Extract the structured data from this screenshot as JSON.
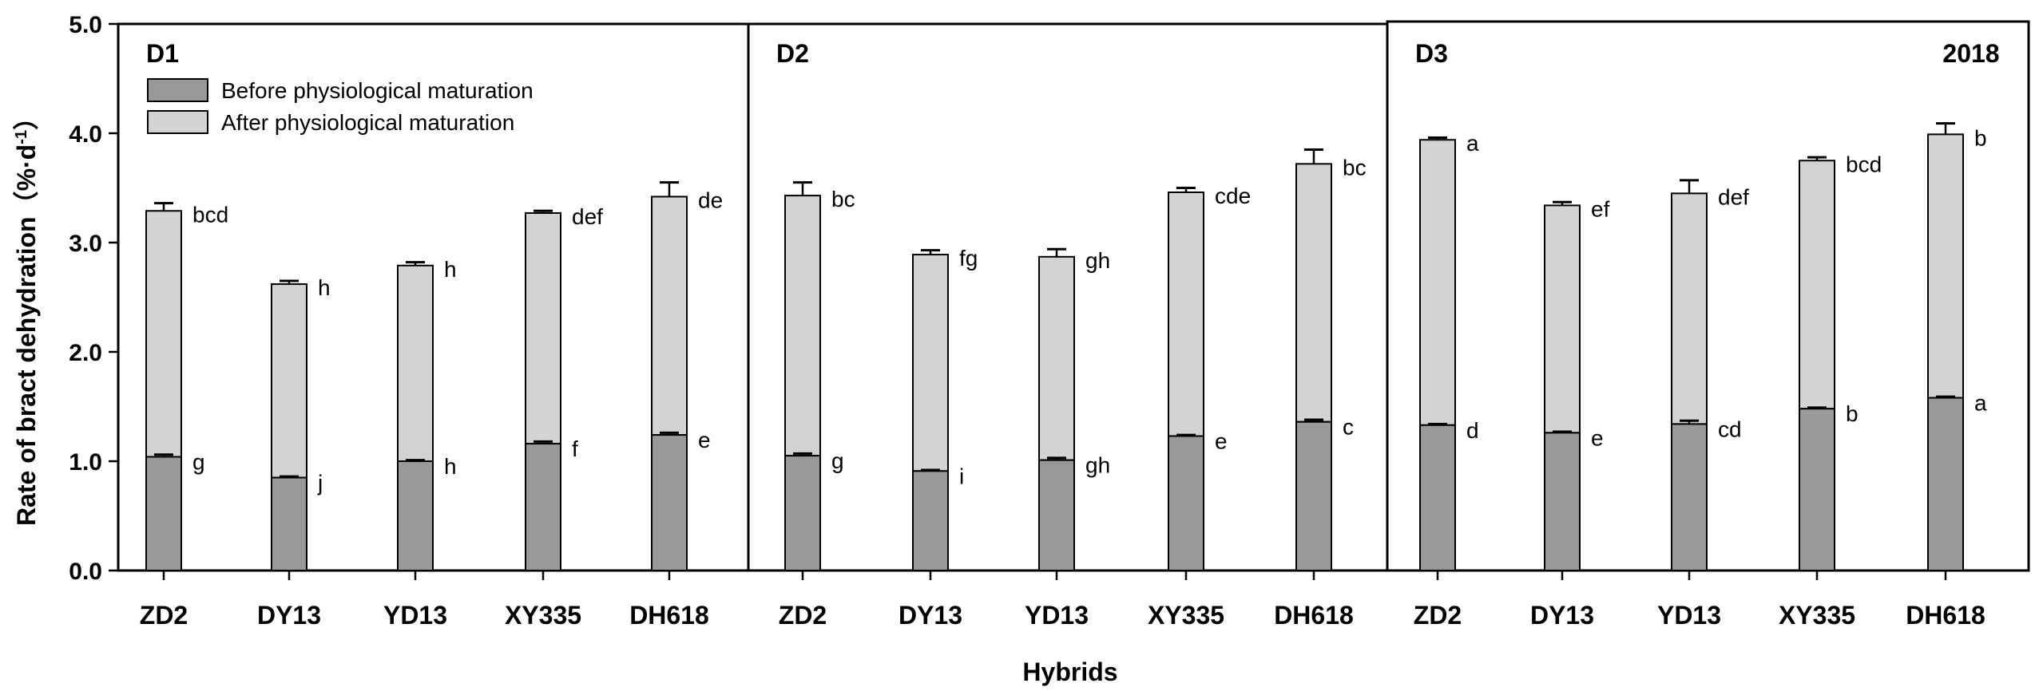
{
  "chart_data": {
    "type": "bar",
    "stacked": true,
    "year_label": "2018",
    "ylabel": "Rate of bract dehydration（%·d",
    "ylabel_sup": "-1",
    "ylabel_close": "）",
    "xlabel": "Hybrids",
    "ylim": [
      0,
      5
    ],
    "yticks": [
      "0.0",
      "1.0",
      "2.0",
      "3.0",
      "4.0",
      "5.0"
    ],
    "legend": {
      "position": "top-left",
      "entries": [
        {
          "name": "Before physiological maturation",
          "color": "#999999"
        },
        {
          "name": "After physiological maturation",
          "color": "#d3d3d3"
        }
      ]
    },
    "colors": {
      "before": "#999999",
      "after": "#d3d3d3"
    },
    "panels": [
      {
        "name": "D1",
        "categories": [
          "ZD2",
          "DY13",
          "YD13",
          "XY335",
          "DH618"
        ],
        "before": [
          1.04,
          0.85,
          1.0,
          1.16,
          1.24
        ],
        "before_err": [
          0.02,
          0.01,
          0.01,
          0.02,
          0.02
        ],
        "before_sig": [
          "g",
          "j",
          "h",
          "f",
          "e"
        ],
        "total": [
          3.29,
          2.62,
          2.79,
          3.27,
          3.42
        ],
        "total_err": [
          0.07,
          0.03,
          0.03,
          0.02,
          0.13
        ],
        "total_sig": [
          "bcd",
          "h",
          "h",
          "def",
          "de"
        ]
      },
      {
        "name": "D2",
        "categories": [
          "ZD2",
          "DY13",
          "YD13",
          "XY335",
          "DH618"
        ],
        "before": [
          1.05,
          0.91,
          1.01,
          1.23,
          1.36
        ],
        "before_err": [
          0.02,
          0.01,
          0.02,
          0.01,
          0.02
        ],
        "before_sig": [
          "g",
          "i",
          "gh",
          "e",
          "c"
        ],
        "total": [
          3.43,
          2.89,
          2.87,
          3.46,
          3.72
        ],
        "total_err": [
          0.12,
          0.04,
          0.07,
          0.04,
          0.13
        ],
        "total_sig": [
          "bc",
          "fg",
          "gh",
          "cde",
          "bc"
        ]
      },
      {
        "name": "D3",
        "categories": [
          "ZD2",
          "DY13",
          "YD13",
          "XY335",
          "DH618"
        ],
        "before": [
          1.33,
          1.26,
          1.34,
          1.48,
          1.58
        ],
        "before_err": [
          0.01,
          0.01,
          0.03,
          0.01,
          0.01
        ],
        "before_sig": [
          "d",
          "e",
          "cd",
          "b",
          "a"
        ],
        "total": [
          3.94,
          3.34,
          3.45,
          3.75,
          3.99
        ],
        "total_err": [
          0.02,
          0.03,
          0.12,
          0.03,
          0.1
        ],
        "total_sig": [
          "a",
          "ef",
          "def",
          "bcd",
          "b"
        ]
      }
    ]
  }
}
